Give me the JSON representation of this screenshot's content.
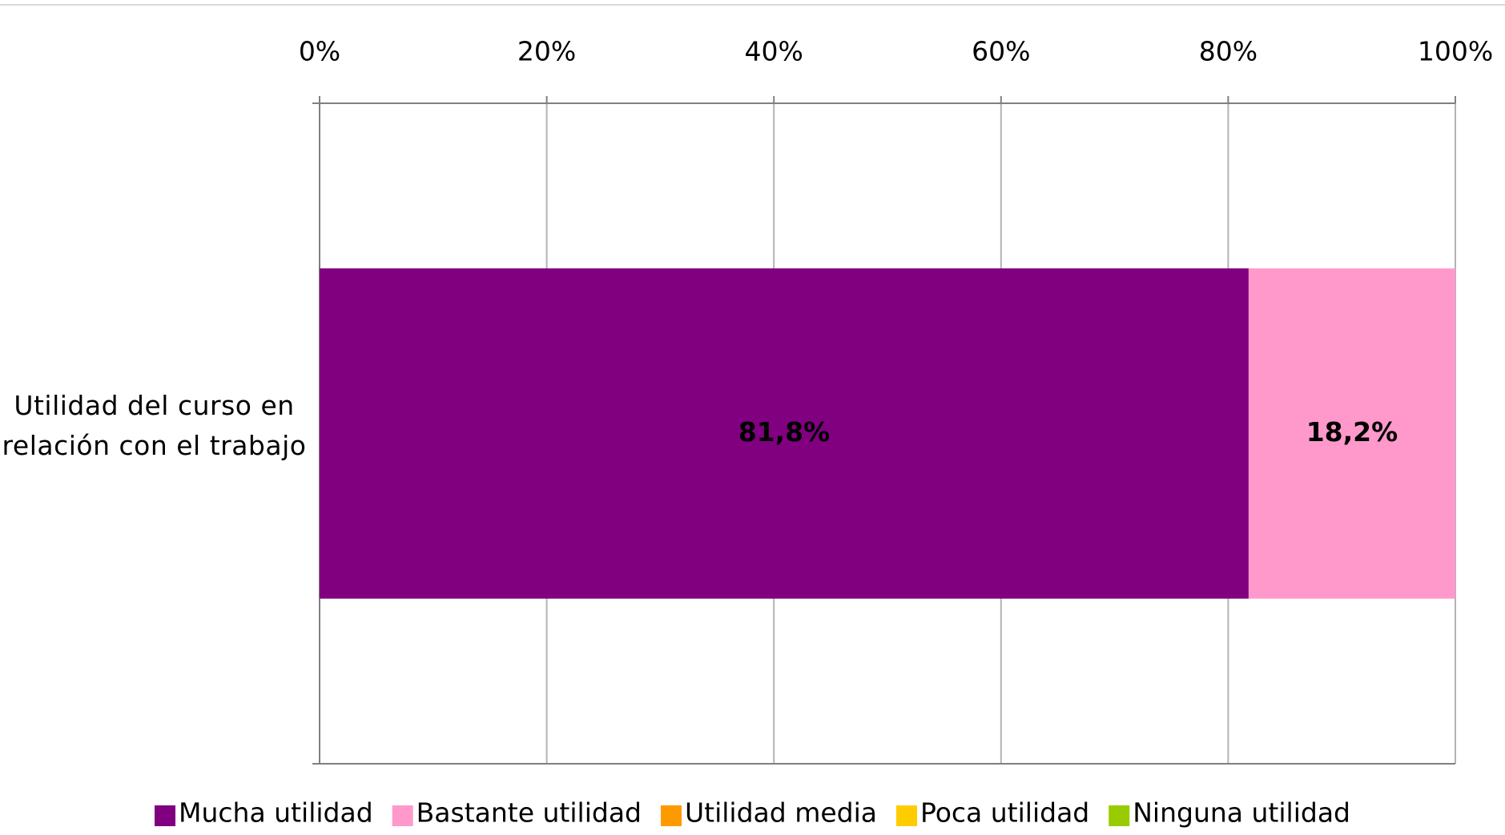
{
  "chart_data": {
    "type": "bar",
    "orientation": "horizontal",
    "stacked": true,
    "categories": [
      "Utilidad del curso en relación con el trabajo"
    ],
    "series": [
      {
        "name": "Mucha utilidad",
        "color": "#800080",
        "values": [
          81.8
        ],
        "value_labels": [
          "81,8%"
        ]
      },
      {
        "name": "Bastante utilidad",
        "color": "#ff99cc",
        "values": [
          18.2
        ],
        "value_labels": [
          "18,2%"
        ]
      },
      {
        "name": "Utilidad media",
        "color": "#ff9900",
        "values": [
          0
        ]
      },
      {
        "name": "Poca utilidad",
        "color": "#ffcc00",
        "values": [
          0
        ]
      },
      {
        "name": "Ninguna utilidad",
        "color": "#99cc00",
        "values": [
          0
        ]
      }
    ],
    "xlim": [
      0,
      100
    ],
    "xticks": [
      {
        "value": 0,
        "label": "0%"
      },
      {
        "value": 20,
        "label": "20%"
      },
      {
        "value": 40,
        "label": "40%"
      },
      {
        "value": 60,
        "label": "60%"
      },
      {
        "value": 80,
        "label": "80%"
      },
      {
        "value": 100,
        "label": "100%"
      }
    ],
    "grid": true,
    "legend": "bottom"
  }
}
